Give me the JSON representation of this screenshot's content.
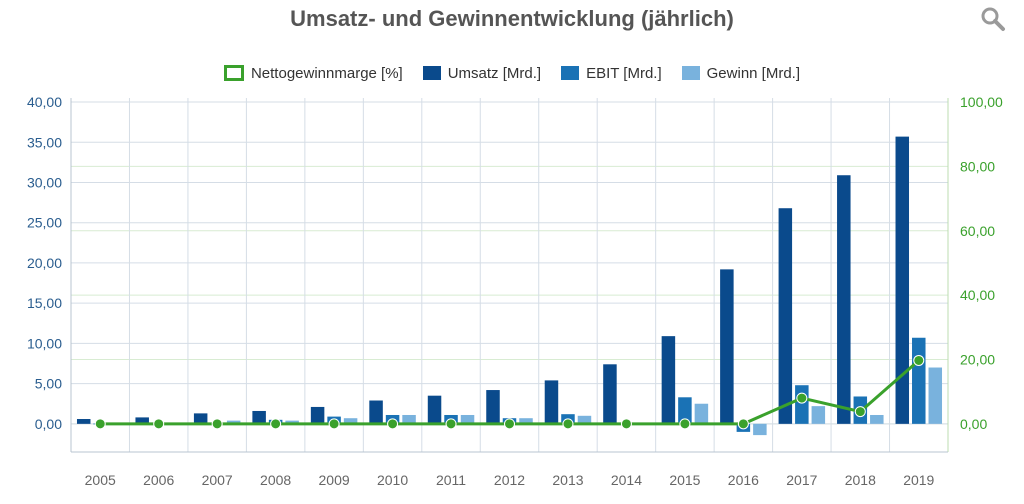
{
  "chart_data": {
    "type": "bar",
    "title": "Umsatz- und Gewinnentwicklung (jährlich)",
    "categories": [
      "2005",
      "2006",
      "2007",
      "2008",
      "2009",
      "2010",
      "2011",
      "2012",
      "2013",
      "2014",
      "2015",
      "2016",
      "2017",
      "2018",
      "2019"
    ],
    "series": [
      {
        "name": "Umsatz [Mrd.]",
        "type": "bar",
        "axis": "left",
        "color": "#0a4a8c",
        "values": [
          0.6,
          0.8,
          1.3,
          1.6,
          2.1,
          2.9,
          3.5,
          4.2,
          5.4,
          7.4,
          10.9,
          19.2,
          26.8,
          30.9,
          35.7
        ]
      },
      {
        "name": "EBIT [Mrd.]",
        "type": "bar",
        "axis": "left",
        "color": "#1a72b5",
        "values": [
          0.05,
          0.05,
          0.15,
          0.5,
          0.9,
          1.1,
          1.1,
          0.7,
          1.2,
          0.1,
          3.3,
          -1.0,
          4.8,
          3.4,
          10.7
        ]
      },
      {
        "name": "Gewinn [Mrd.]",
        "type": "bar",
        "axis": "left",
        "color": "#79b2dd",
        "values": [
          0.02,
          0.03,
          0.4,
          0.4,
          0.7,
          1.1,
          1.1,
          0.7,
          1.0,
          0.05,
          2.5,
          -1.4,
          2.2,
          1.1,
          7.0
        ]
      },
      {
        "name": "Nettogewinnmarge [%]",
        "type": "line",
        "axis": "right",
        "color": "#3aa12c",
        "values": [
          0.0,
          0.0,
          0.0,
          0.0,
          0.0,
          0.0,
          0.0,
          0.0,
          0.0,
          0.0,
          0.0,
          0.0,
          8.0,
          3.8,
          19.7
        ]
      }
    ],
    "y_left": {
      "min": -3.5,
      "max": 40.5,
      "ticks": [
        0,
        5,
        10,
        15,
        20,
        25,
        30,
        35,
        40
      ],
      "tick_labels": [
        "0,00",
        "5,00",
        "10,00",
        "15,00",
        "20,00",
        "25,00",
        "30,00",
        "35,00",
        "40,00"
      ]
    },
    "y_right": {
      "min": -8.75,
      "max": 101.25,
      "ticks": [
        0,
        20,
        40,
        60,
        80,
        100
      ],
      "tick_labels": [
        "0,00",
        "20,00",
        "40,00",
        "60,00",
        "80,00",
        "100,00"
      ]
    },
    "grid": true,
    "legend_position": "top-center",
    "colors": {
      "left_axis": "#2a5d8f",
      "right_axis": "#3aa12c",
      "grid": "#d5dde6",
      "grid_right": "#d8ecd2",
      "x_labels": "#666666"
    }
  },
  "legend_order": [
    3,
    0,
    1,
    2
  ],
  "icons": {
    "search": "search-icon"
  }
}
